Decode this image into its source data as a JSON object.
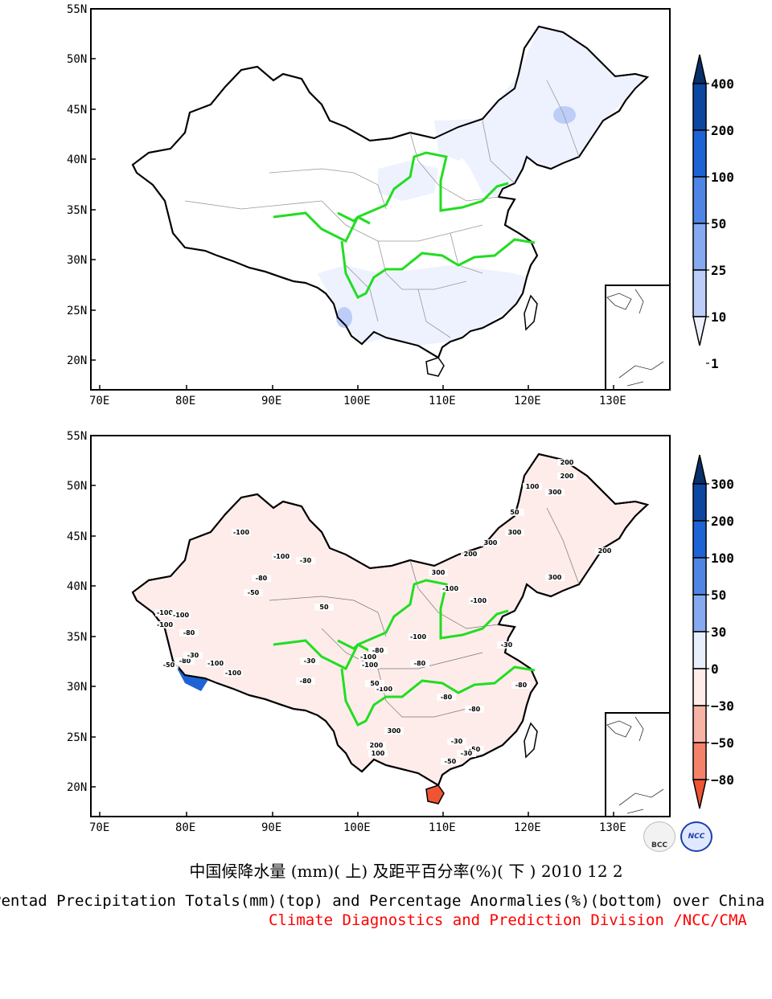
{
  "top_map": {
    "lat_labels": [
      "55N",
      "50N",
      "45N",
      "40N",
      "35N",
      "30N",
      "25N",
      "20N"
    ],
    "lon_labels": [
      "70E",
      "80E",
      "90E",
      "100E",
      "110E",
      "120E",
      "130E"
    ],
    "colorbar": {
      "labels": [
        "400",
        "200",
        "100",
        "50",
        "25",
        "10",
        "1"
      ],
      "colors": [
        "#08306b",
        "#0d47a1",
        "#1e63d6",
        "#4f86e6",
        "#86aaf0",
        "#bccdf8",
        "#eef2fe"
      ]
    }
  },
  "bottom_map": {
    "lat_labels": [
      "55N",
      "50N",
      "45N",
      "40N",
      "35N",
      "30N",
      "25N",
      "20N"
    ],
    "lon_labels": [
      "70E",
      "80E",
      "90E",
      "100E",
      "110E",
      "120E",
      "130E"
    ],
    "colorbar": {
      "labels": [
        "300",
        "200",
        "100",
        "50",
        "30",
        "0",
        "−30",
        "−50",
        "−80"
      ],
      "colors": [
        "#08306b",
        "#0d47a1",
        "#1e63d6",
        "#4f86e6",
        "#86aaf0",
        "#e8eefc",
        "#fdecea",
        "#f7b3a4",
        "#f4826a",
        "#ef5533"
      ]
    },
    "contour_labels": [
      "-100",
      "-100",
      "-30",
      "-50",
      "-80",
      "-100",
      "-100",
      "-80",
      "-100",
      "-80",
      "-30",
      "-50",
      "50",
      "-100",
      "-100",
      "-80",
      "-30",
      "-100",
      "-100",
      "-80",
      "-100",
      "-100",
      "-100",
      "-30",
      "-80",
      "300",
      "300",
      "200",
      "200",
      "100",
      "50",
      "200",
      "300",
      "300",
      "200",
      "300",
      "-100",
      "-80",
      "-30",
      "-50",
      "-80",
      "50",
      "300",
      "200",
      "100",
      "-30",
      "-50",
      "-80"
    ]
  },
  "title_cn": "中国候降水量 (mm)( 上) 及距平百分率(%)( 下 ) 2010 12 2",
  "title_en": "Pentad Precipitation Totals(mm)(top) and Percentage Anormalies(%)(bottom) over China",
  "subtitle": "Climate Diagnostics and Prediction Division /NCC/CMA",
  "logos": [
    "BCC",
    "NCC"
  ]
}
